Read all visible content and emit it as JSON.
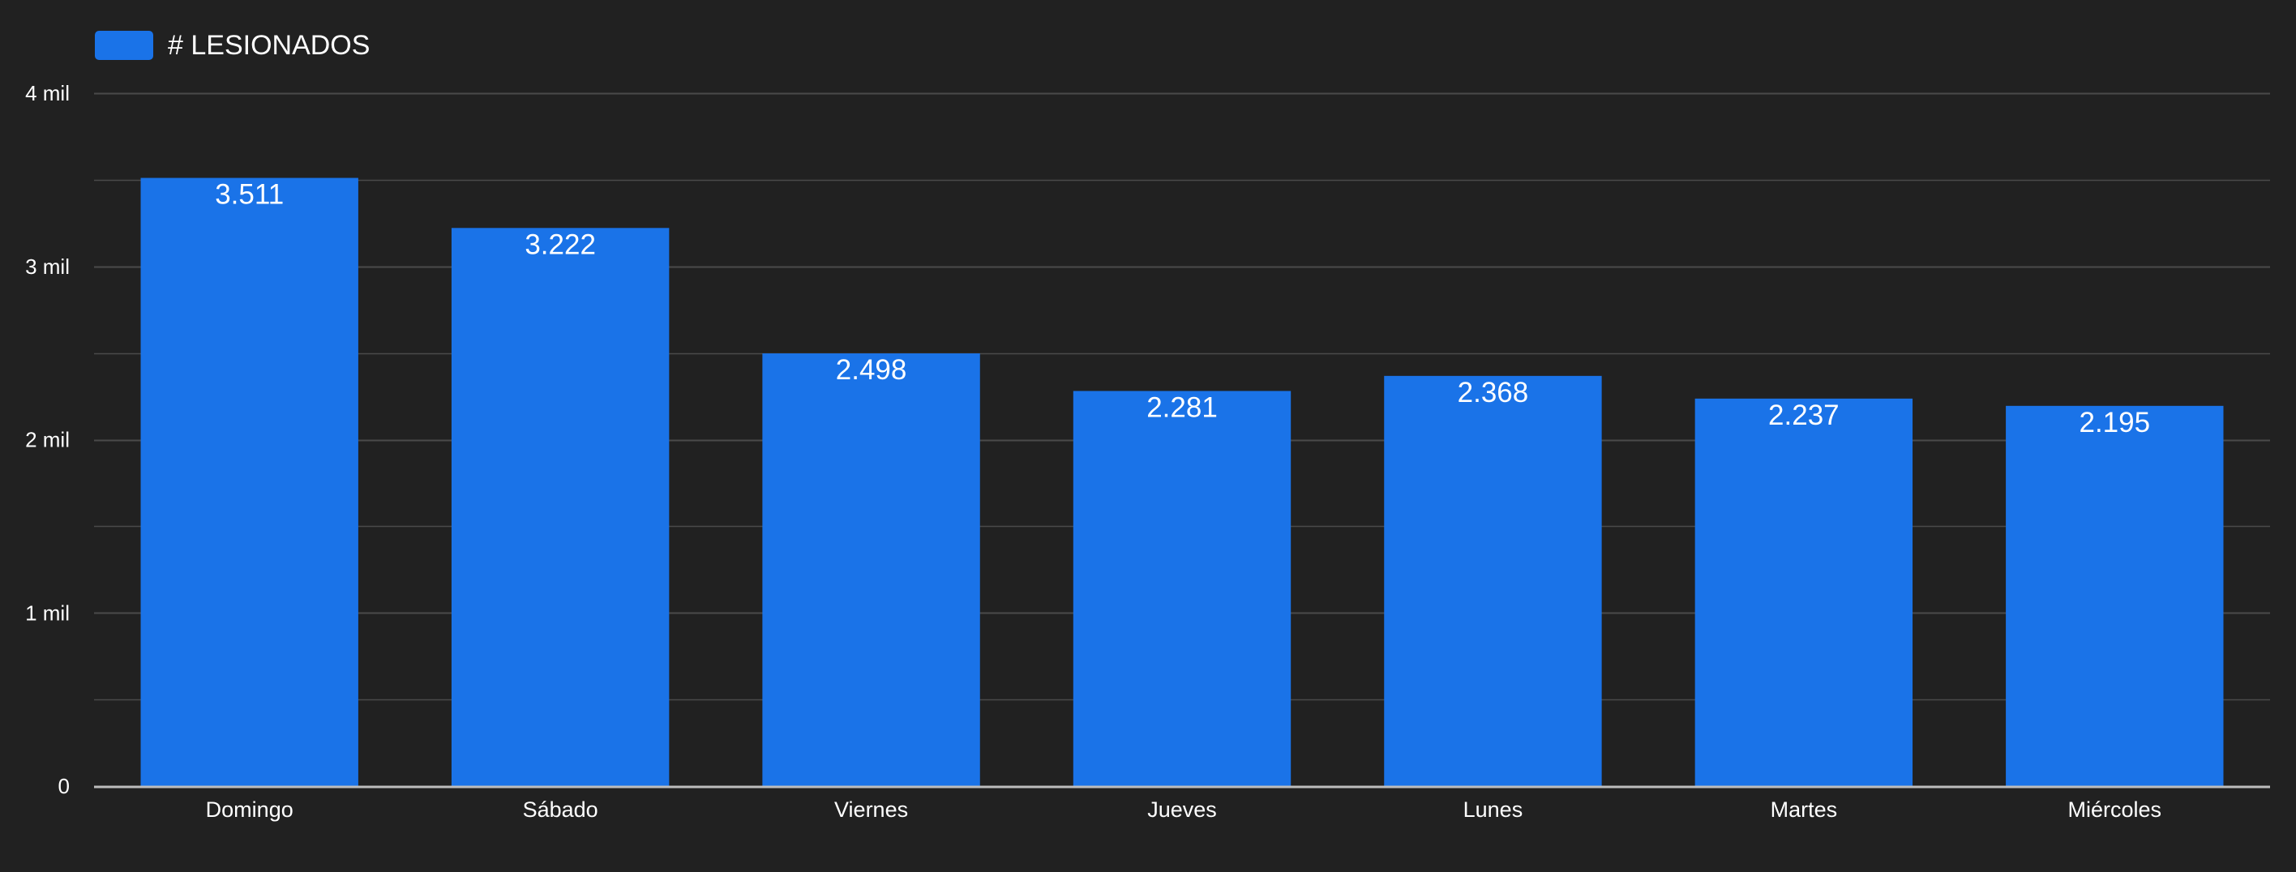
{
  "chart_data": {
    "type": "bar",
    "categories": [
      "Domingo",
      "Sábado",
      "Viernes",
      "Jueves",
      "Lunes",
      "Martes",
      "Miércoles"
    ],
    "series": [
      {
        "name": "# LESIONADOS",
        "values": [
          3511,
          3222,
          2498,
          2281,
          2368,
          2237,
          2195
        ],
        "data_labels": [
          "3.511",
          "3.222",
          "2.498",
          "2.281",
          "2.368",
          "2.237",
          "2.195"
        ],
        "color": "#1a73e8"
      }
    ],
    "y_ticks": [
      {
        "value": 0,
        "label": "0"
      },
      {
        "value": 1000,
        "label": "1 mil"
      },
      {
        "value": 2000,
        "label": "2 mil"
      },
      {
        "value": 3000,
        "label": "3 mil"
      },
      {
        "value": 4000,
        "label": "4 mil"
      }
    ],
    "ylim": [
      0,
      4000
    ],
    "minor_gridlines": true,
    "grid": true,
    "legend_position": "top-left"
  },
  "colors": {
    "background": "#212121",
    "bar": "#1a73e8",
    "gridline": "#4a4a4a",
    "axis_line": "#bdbdbd",
    "text": "#ffffff"
  }
}
